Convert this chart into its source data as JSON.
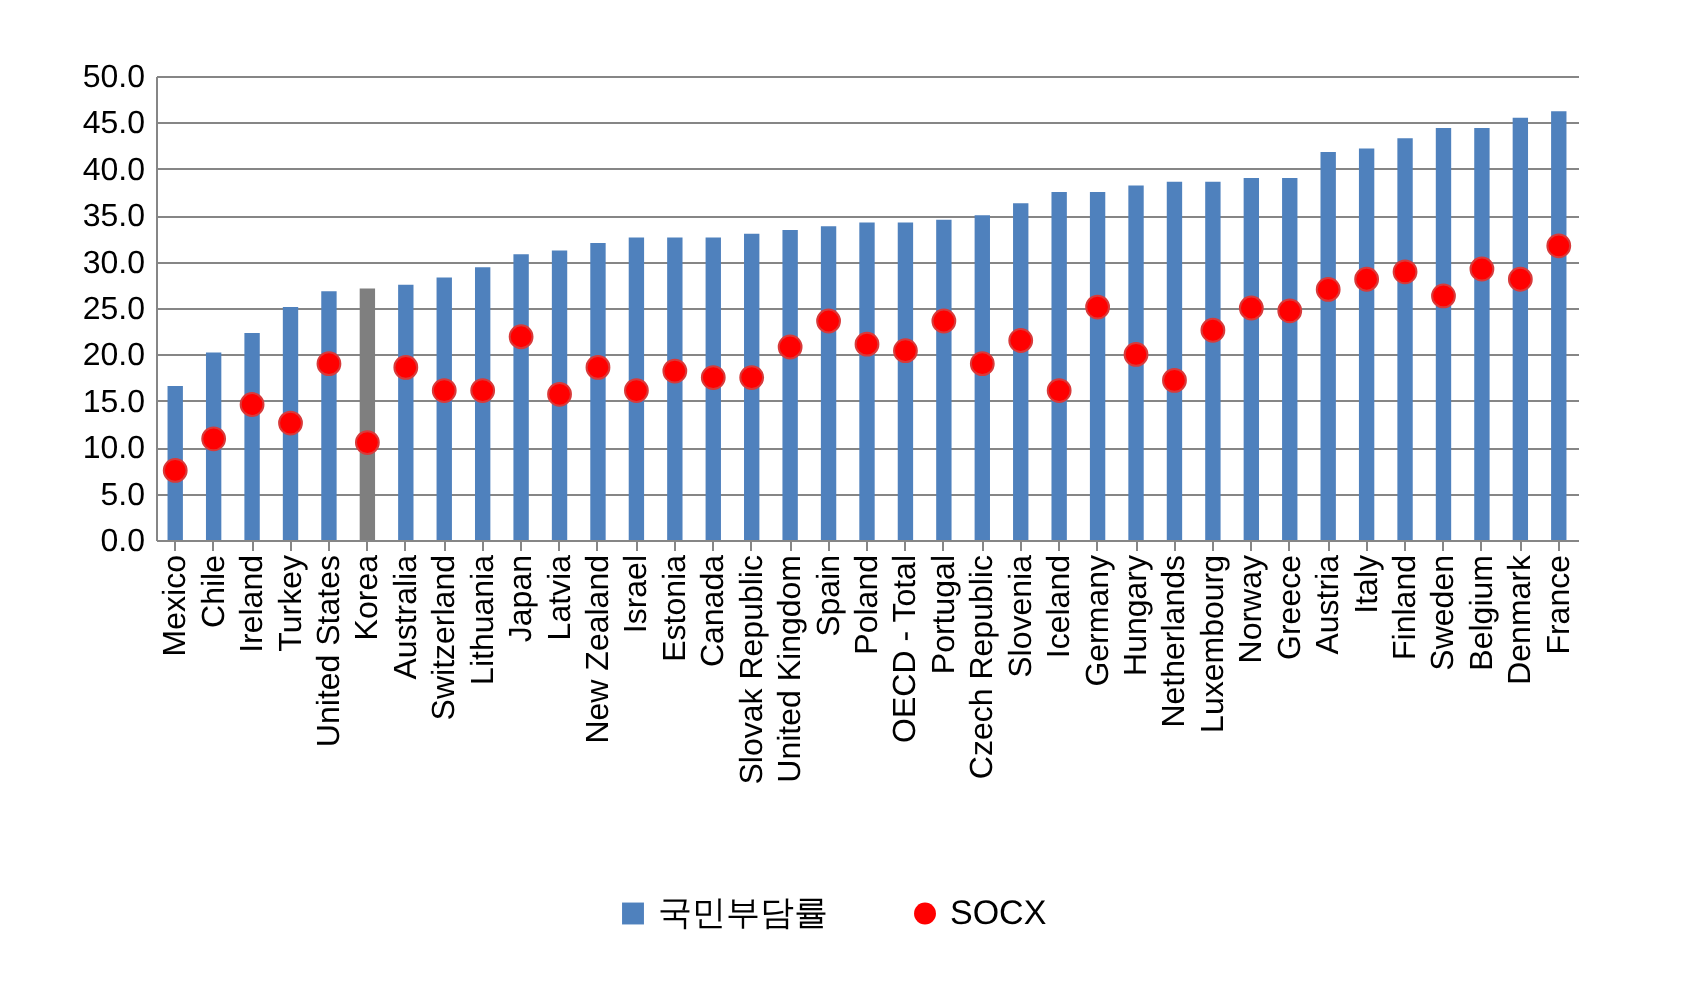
{
  "chart_data": {
    "type": "bar",
    "categories": [
      "Mexico",
      "Chile",
      "Ireland",
      "Turkey",
      "United States",
      "Korea",
      "Australia",
      "Switzerland",
      "Lithuania",
      "Japan",
      "Latvia",
      "New Zealand",
      "Israel",
      "Estonia",
      "Canada",
      "Slovak Republic",
      "United Kingdom",
      "Spain",
      "Poland",
      "OECD - Total",
      "Portugal",
      "Czech Republic",
      "Slovenia",
      "Iceland",
      "Germany",
      "Hungary",
      "Netherlands",
      "Luxembourg",
      "Norway",
      "Greece",
      "Austria",
      "Italy",
      "Finland",
      "Sweden",
      "Belgium",
      "Denmark",
      "France"
    ],
    "series": [
      {
        "name": "국민부담률",
        "type": "bar",
        "color": "#4f81bd",
        "colors": [
          "#4f81bd",
          "#4f81bd",
          "#4f81bd",
          "#4f81bd",
          "#4f81bd",
          "#7f7f7f",
          "#4f81bd",
          "#4f81bd",
          "#4f81bd",
          "#4f81bd",
          "#4f81bd",
          "#4f81bd",
          "#4f81bd",
          "#4f81bd",
          "#4f81bd",
          "#4f81bd",
          "#4f81bd",
          "#4f81bd",
          "#4f81bd",
          "#4f81bd",
          "#4f81bd",
          "#4f81bd",
          "#4f81bd",
          "#4f81bd",
          "#4f81bd",
          "#4f81bd",
          "#4f81bd",
          "#4f81bd",
          "#4f81bd",
          "#4f81bd",
          "#4f81bd",
          "#4f81bd",
          "#4f81bd",
          "#4f81bd",
          "#4f81bd",
          "#4f81bd",
          "#4f81bd"
        ],
        "values": [
          16.6,
          20.2,
          22.3,
          25.1,
          26.8,
          27.1,
          27.5,
          28.3,
          29.4,
          30.8,
          31.2,
          32.0,
          32.6,
          32.6,
          32.6,
          33.0,
          33.4,
          33.8,
          34.2,
          34.2,
          34.5,
          35.0,
          36.3,
          37.5,
          37.5,
          38.2,
          38.6,
          38.6,
          39.0,
          39.0,
          41.8,
          42.2,
          43.3,
          44.4,
          44.4,
          45.5,
          46.2
        ]
      },
      {
        "name": "SOCX",
        "type": "scatter",
        "color": "#ff0000",
        "values": [
          7.5,
          10.9,
          14.6,
          12.6,
          19.0,
          10.5,
          18.6,
          16.1,
          16.1,
          21.9,
          15.7,
          18.6,
          16.1,
          18.2,
          17.5,
          17.5,
          20.8,
          23.6,
          21.1,
          20.4,
          23.6,
          19.0,
          21.5,
          16.1,
          25.1,
          20.0,
          17.2,
          22.6,
          25.0,
          24.7,
          27.0,
          28.1,
          28.9,
          26.3,
          29.2,
          28.1,
          31.7
        ]
      }
    ],
    "ylim": [
      0,
      50
    ],
    "yticks": [
      {
        "value": 0,
        "label": "0.0"
      },
      {
        "value": 5,
        "label": "5.0"
      },
      {
        "value": 10,
        "label": "10.0"
      },
      {
        "value": 15,
        "label": "15.0"
      },
      {
        "value": 20,
        "label": "20.0"
      },
      {
        "value": 25,
        "label": "25.0"
      },
      {
        "value": 30,
        "label": "30.0"
      },
      {
        "value": 35,
        "label": "35.0"
      },
      {
        "value": 40,
        "label": "40.0"
      },
      {
        "value": 45,
        "label": "45.0"
      },
      {
        "value": 50,
        "label": "50.0"
      }
    ],
    "grid": "y",
    "legend": "bottom",
    "marker": "circle"
  }
}
